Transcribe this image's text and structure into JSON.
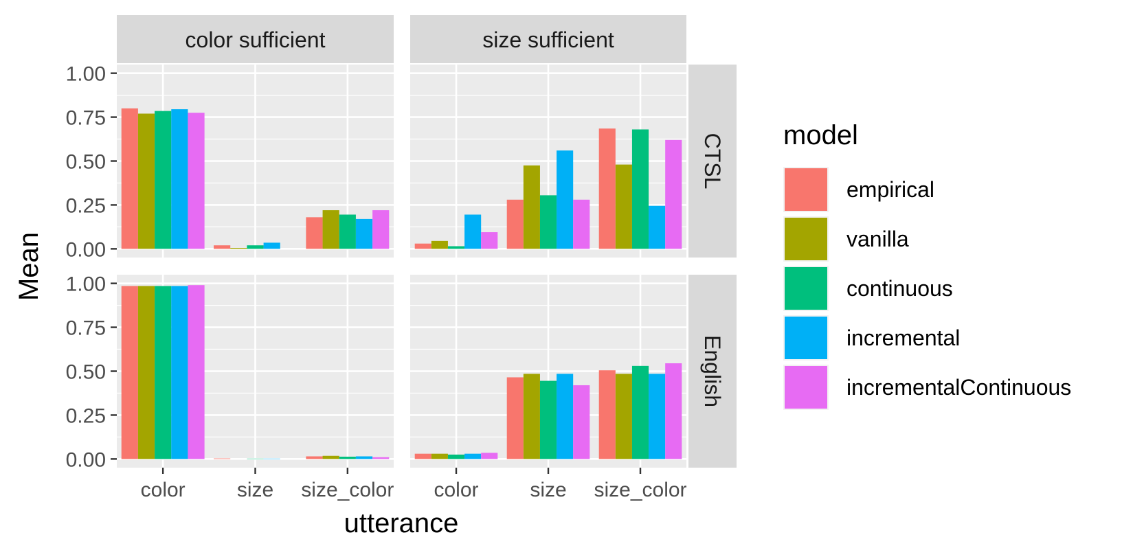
{
  "chart_data": {
    "type": "bar",
    "facet_columns": [
      "color sufficient",
      "size sufficient"
    ],
    "facet_rows": [
      "CTSL",
      "English"
    ],
    "categories": [
      "color",
      "size",
      "size_color"
    ],
    "xlabel": "utterance",
    "ylabel": "Mean",
    "ylim": [
      0,
      1
    ],
    "yticks": [
      "0.00",
      "0.25",
      "0.50",
      "0.75",
      "1.00"
    ],
    "grid": true,
    "legend": {
      "title": "model",
      "placement": "right",
      "items": [
        {
          "name": "empirical",
          "color": "#F8766D"
        },
        {
          "name": "vanilla",
          "color": "#A3A500"
        },
        {
          "name": "continuous",
          "color": "#00BF7D"
        },
        {
          "name": "incremental",
          "color": "#00B0F6"
        },
        {
          "name": "incrementalContinuous",
          "color": "#E76BF3"
        }
      ]
    },
    "panels": [
      {
        "column": "color sufficient",
        "row": "CTSL",
        "values": {
          "empirical": [
            0.8,
            0.02,
            0.18
          ],
          "vanilla": [
            0.77,
            0.005,
            0.22
          ],
          "continuous": [
            0.785,
            0.02,
            0.195
          ],
          "incremental": [
            0.795,
            0.035,
            0.17
          ],
          "incrementalContinuous": [
            0.775,
            0.0,
            0.22
          ]
        }
      },
      {
        "column": "size sufficient",
        "row": "CTSL",
        "values": {
          "empirical": [
            0.03,
            0.28,
            0.685
          ],
          "vanilla": [
            0.045,
            0.475,
            0.48
          ],
          "continuous": [
            0.015,
            0.305,
            0.68
          ],
          "incremental": [
            0.195,
            0.56,
            0.245
          ],
          "incrementalContinuous": [
            0.095,
            0.28,
            0.62
          ]
        }
      },
      {
        "column": "color sufficient",
        "row": "English",
        "values": {
          "empirical": [
            0.985,
            0.003,
            0.015
          ],
          "vanilla": [
            0.985,
            0.0,
            0.018
          ],
          "continuous": [
            0.985,
            0.002,
            0.013
          ],
          "incremental": [
            0.985,
            0.002,
            0.015
          ],
          "incrementalContinuous": [
            0.99,
            0.0,
            0.01
          ]
        }
      },
      {
        "column": "size sufficient",
        "row": "English",
        "values": {
          "empirical": [
            0.03,
            0.465,
            0.505
          ],
          "vanilla": [
            0.03,
            0.485,
            0.485
          ],
          "continuous": [
            0.025,
            0.445,
            0.53
          ],
          "incremental": [
            0.03,
            0.485,
            0.485
          ],
          "incrementalContinuous": [
            0.035,
            0.42,
            0.545
          ]
        }
      }
    ]
  }
}
